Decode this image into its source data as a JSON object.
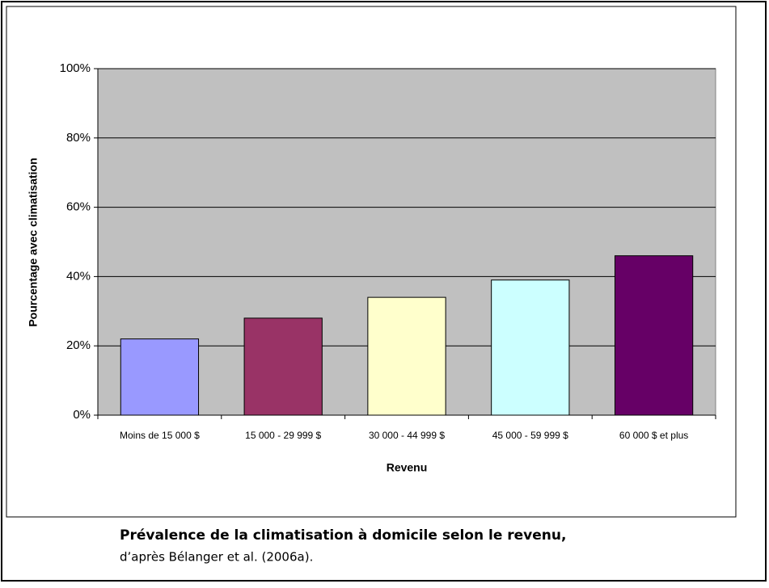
{
  "chart_data": {
    "type": "bar",
    "y_label": "Pourcentage avec climatisation",
    "x_label": "Revenu",
    "categories": [
      "Moins de 15 000 $",
      "15 000 - 29 999 $",
      "30 000 - 44 999 $",
      "45 000 - 59 999 $",
      "60 000 $ et plus"
    ],
    "values": [
      22,
      28,
      34,
      39,
      46
    ],
    "colors": [
      "#9999ff",
      "#993366",
      "#ffffcc",
      "#ccffff",
      "#660066"
    ],
    "ylim": [
      0,
      100
    ],
    "yticks": [
      {
        "value": 0,
        "label": "0%"
      },
      {
        "value": 20,
        "label": "20%"
      },
      {
        "value": 40,
        "label": "40%"
      },
      {
        "value": 60,
        "label": "60%"
      },
      {
        "value": 80,
        "label": "80%"
      },
      {
        "value": 100,
        "label": "100%"
      }
    ],
    "grid": true
  },
  "caption": {
    "title": "Prévalence de la climatisation à domicile selon le revenu,",
    "source": "d’après Bélanger et al. (2006a)."
  }
}
